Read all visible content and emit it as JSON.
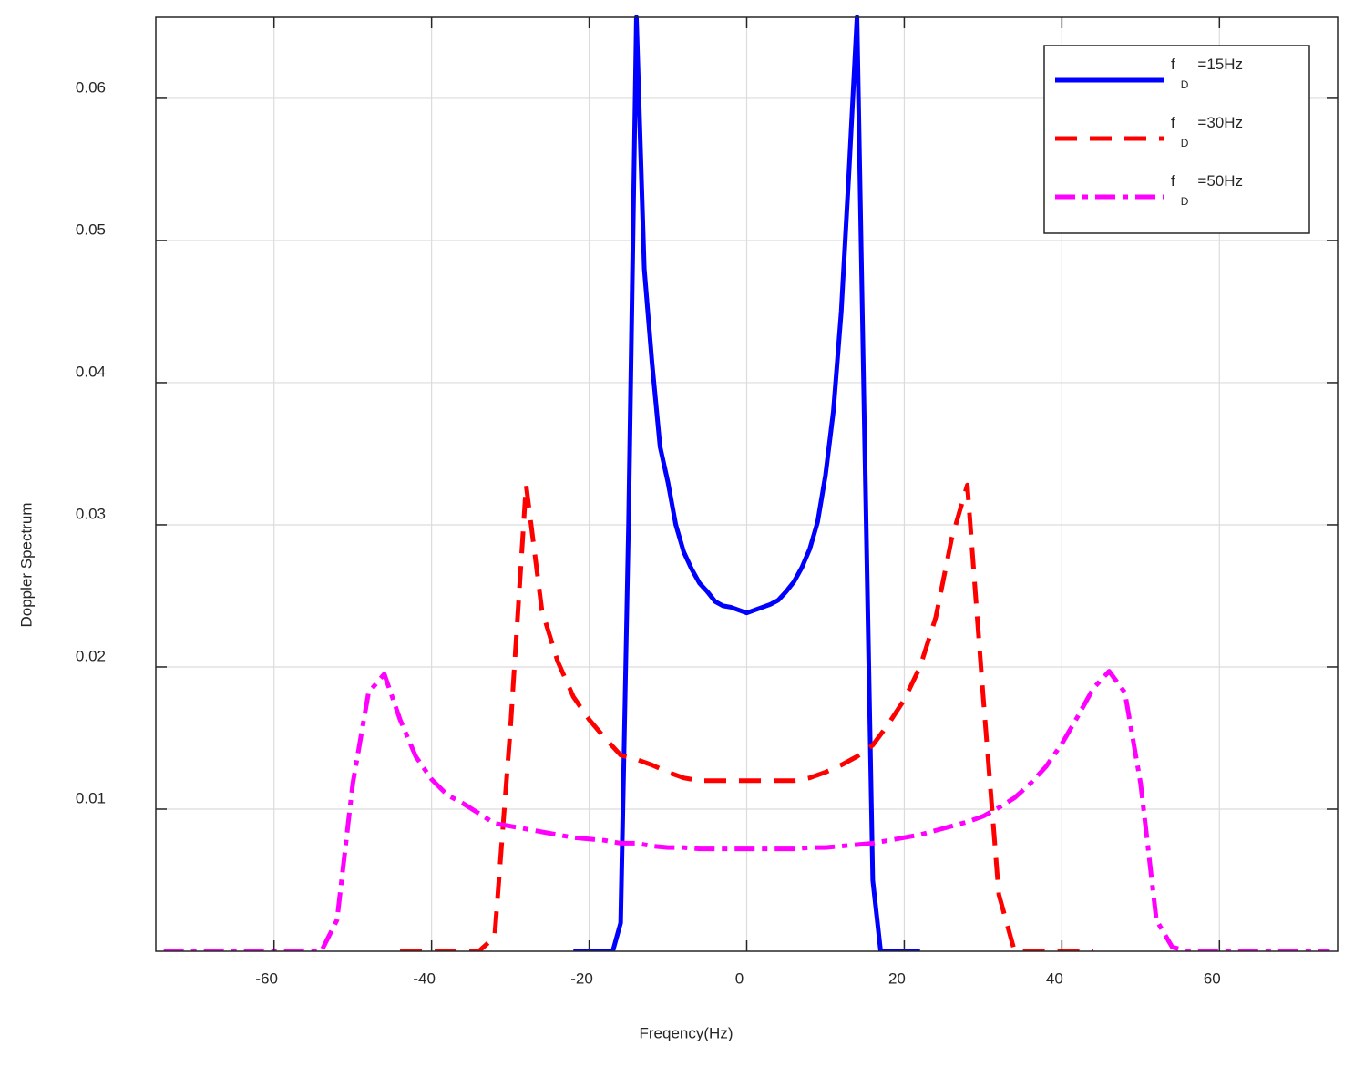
{
  "chart_data": {
    "type": "line",
    "xlabel": "Freqency(Hz)",
    "ylabel": "Doppler Spectrum",
    "xlim": [
      -75,
      75
    ],
    "ylim": [
      0,
      0.0657
    ],
    "xticks": [
      -60,
      -40,
      -20,
      0,
      20,
      40,
      60
    ],
    "yticks": [
      0.01,
      0.02,
      0.03,
      0.04,
      0.05,
      0.06
    ],
    "grid": true,
    "legend": "upper right",
    "series": [
      {
        "name": "fD=15Hz",
        "color": "#0000ff",
        "dash": "solid",
        "x": [
          -22,
          -21,
          -20,
          -19,
          -18,
          -17,
          -16,
          -15,
          -14,
          -13,
          -12,
          -11,
          -10,
          -9,
          -8,
          -7,
          -6,
          -5,
          -4,
          -3,
          -2,
          -1,
          0,
          1,
          2,
          3,
          4,
          5,
          6,
          7,
          8,
          9,
          10,
          11,
          12,
          13,
          14,
          15,
          16,
          17,
          18,
          19,
          20,
          21,
          22
        ],
        "values": [
          0,
          0,
          0,
          0,
          0,
          0,
          0.002,
          0.03,
          0.0657,
          0.048,
          0.0413,
          0.0355,
          0.033,
          0.03,
          0.0281,
          0.0269,
          0.0259,
          0.0253,
          0.0246,
          0.0243,
          0.0242,
          0.024,
          0.0238,
          0.024,
          0.0242,
          0.0244,
          0.0247,
          0.0253,
          0.026,
          0.027,
          0.0283,
          0.0302,
          0.0335,
          0.038,
          0.045,
          0.055,
          0.0657,
          0.035,
          0.005,
          0,
          0,
          0,
          0,
          0,
          0
        ]
      },
      {
        "name": "fD=30Hz",
        "color": "#ff0000",
        "dash": "dashed",
        "x": [
          -44,
          -42,
          -40,
          -38,
          -36,
          -34,
          -32,
          -30,
          -28,
          -26,
          -24,
          -22,
          -20,
          -18,
          -16,
          -14,
          -12,
          -10,
          -8,
          -6,
          -4,
          -2,
          0,
          2,
          4,
          6,
          8,
          10,
          12,
          14,
          16,
          18,
          20,
          22,
          24,
          26,
          28,
          30,
          32,
          34,
          36,
          38,
          40,
          42,
          44
        ],
        "values": [
          0,
          0,
          0,
          0,
          0,
          0,
          0.001,
          0.0156,
          0.0328,
          0.024,
          0.0204,
          0.0179,
          0.0163,
          0.015,
          0.0138,
          0.0135,
          0.0131,
          0.0126,
          0.0122,
          0.012,
          0.012,
          0.012,
          0.012,
          0.012,
          0.012,
          0.012,
          0.0122,
          0.0126,
          0.0131,
          0.0137,
          0.0145,
          0.016,
          0.0177,
          0.02,
          0.0235,
          0.029,
          0.0328,
          0.018,
          0.004,
          0,
          0,
          0,
          0,
          0,
          0
        ]
      },
      {
        "name": "fD=50Hz",
        "color": "#ff00ff",
        "dash": "dashdot",
        "x": [
          -74,
          -72,
          -70,
          -68,
          -66,
          -64,
          -62,
          -60,
          -58,
          -56,
          -54,
          -52,
          -50,
          -48,
          -46,
          -44,
          -42,
          -40,
          -38,
          -36,
          -34,
          -32,
          -30,
          -28,
          -26,
          -24,
          -22,
          -20,
          -18,
          -16,
          -14,
          -12,
          -10,
          -8,
          -6,
          -4,
          -2,
          0,
          2,
          4,
          6,
          8,
          10,
          12,
          14,
          16,
          18,
          20,
          22,
          24,
          26,
          28,
          30,
          32,
          34,
          36,
          38,
          40,
          42,
          44,
          46,
          48,
          50,
          52,
          54,
          56,
          58,
          60,
          62,
          64,
          66,
          68,
          70,
          72,
          74
        ],
        "values": [
          0,
          0,
          0,
          0,
          0,
          0,
          0,
          0,
          0,
          0,
          0,
          0.0022,
          0.0118,
          0.0182,
          0.0195,
          0.0163,
          0.0137,
          0.0121,
          0.011,
          0.0104,
          0.0097,
          0.009,
          0.0088,
          0.0086,
          0.0084,
          0.0082,
          0.008,
          0.0079,
          0.0078,
          0.0076,
          0.0076,
          0.0074,
          0.0073,
          0.0073,
          0.0072,
          0.0072,
          0.0072,
          0.0072,
          0.0072,
          0.0072,
          0.0072,
          0.0073,
          0.0073,
          0.0074,
          0.0075,
          0.0076,
          0.0078,
          0.008,
          0.0082,
          0.0085,
          0.0088,
          0.0091,
          0.0095,
          0.0101,
          0.0108,
          0.0118,
          0.013,
          0.0146,
          0.0165,
          0.0185,
          0.0197,
          0.0182,
          0.0118,
          0.0022,
          0.0003,
          0,
          0,
          0,
          0,
          0,
          0,
          0,
          0,
          0,
          0
        ]
      }
    ]
  }
}
